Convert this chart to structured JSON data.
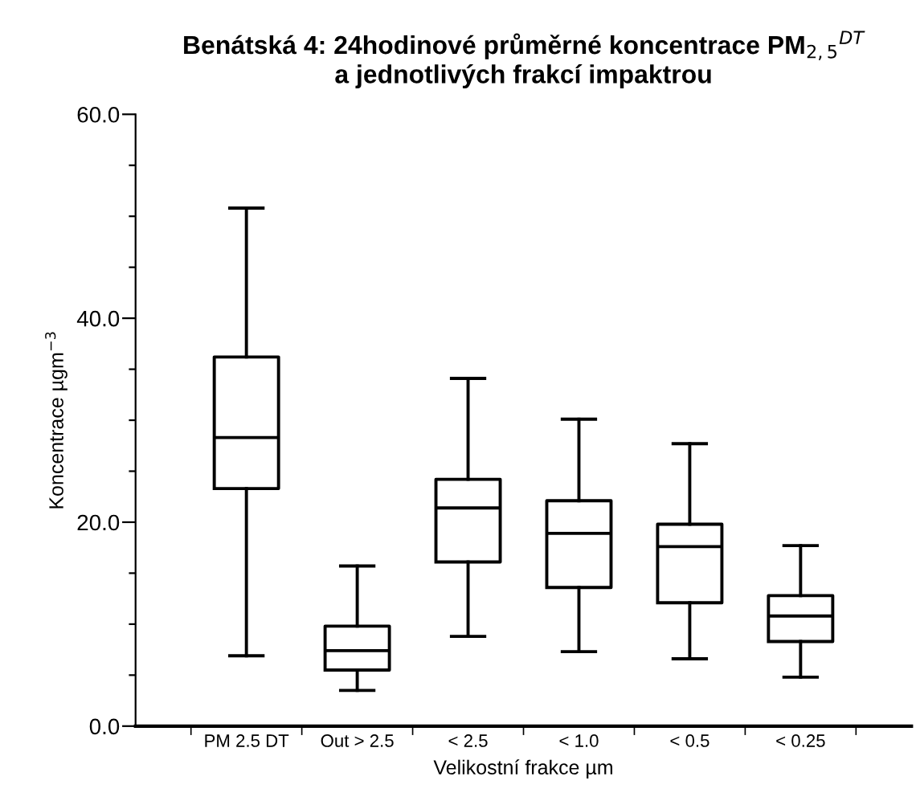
{
  "chart_data": {
    "type": "box",
    "title": "Benátská 4: 24hodinové průměrné koncentrace PM$_{2,5}$$^{DT}$\na jednotlivých frakcí impaktrou",
    "xlabel": "Velikostní frakce µm",
    "ylabel": "Koncentrace µgm$^{−3}$",
    "categories": [
      "PM 2.5 DT",
      "Out > 2.5",
      "< 2.5",
      "< 1.0",
      "< 0.5",
      "< 0.25"
    ],
    "boxes": [
      {
        "low": 6.9,
        "q1": 23.3,
        "median": 28.3,
        "q3": 36.2,
        "high": 50.8
      },
      {
        "low": 3.5,
        "q1": 5.5,
        "median": 7.4,
        "q3": 9.8,
        "high": 15.7
      },
      {
        "low": 8.8,
        "q1": 16.1,
        "median": 21.4,
        "q3": 24.2,
        "high": 34.1
      },
      {
        "low": 7.3,
        "q1": 13.6,
        "median": 18.9,
        "q3": 22.1,
        "high": 30.1
      },
      {
        "low": 6.6,
        "q1": 12.1,
        "median": 17.6,
        "q3": 19.8,
        "high": 27.7
      },
      {
        "low": 4.8,
        "q1": 8.3,
        "median": 10.8,
        "q3": 12.8,
        "high": 17.7
      }
    ],
    "color": "#000000",
    "ylim": [
      0,
      60
    ],
    "yticks": [
      {
        "value": 0,
        "label": "0.0"
      },
      {
        "value": 5,
        "label": null
      },
      {
        "value": 10,
        "label": null
      },
      {
        "value": 15,
        "label": null
      },
      {
        "value": 20,
        "label": "20.0"
      },
      {
        "value": 25,
        "label": null
      },
      {
        "value": 30,
        "label": null
      },
      {
        "value": 35,
        "label": null
      },
      {
        "value": 40,
        "label": "40.0"
      },
      {
        "value": 45,
        "label": null
      },
      {
        "value": 50,
        "label": null
      },
      {
        "value": 55,
        "label": null
      },
      {
        "value": 60,
        "label": "60.0"
      }
    ],
    "grid": false,
    "legend": false
  }
}
